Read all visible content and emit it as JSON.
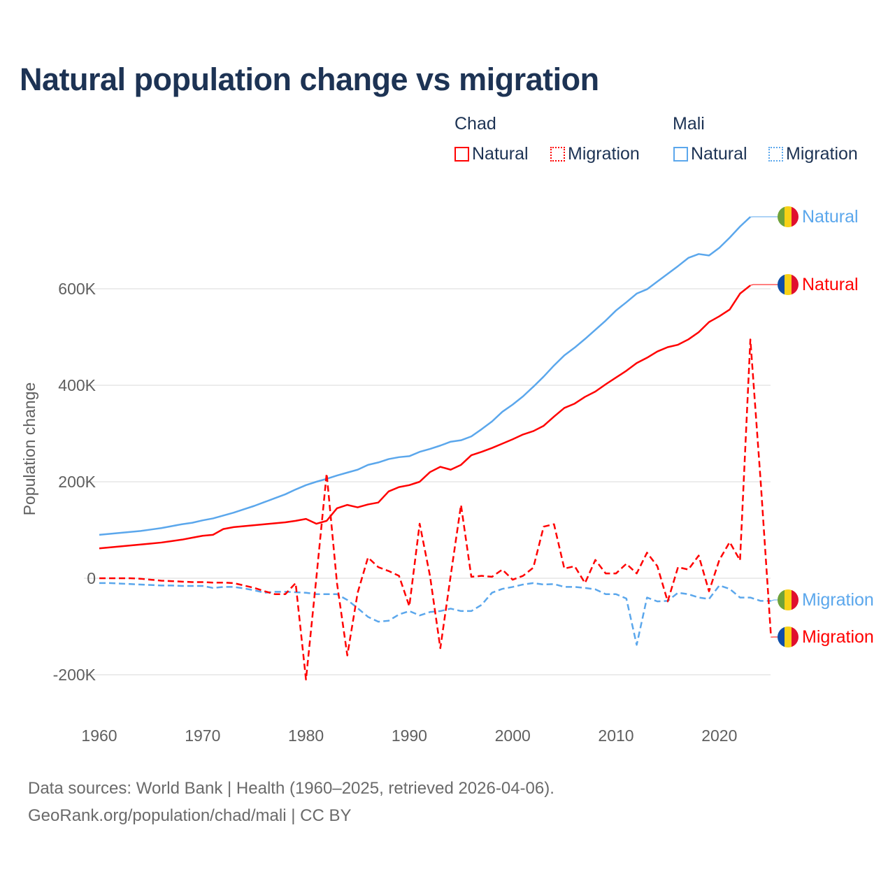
{
  "title": "Natural population change vs migration",
  "legend": {
    "groups": [
      {
        "name": "Chad",
        "items": [
          {
            "label": "Natural",
            "style": "solid"
          },
          {
            "label": "Migration",
            "style": "dotted"
          }
        ],
        "color": "#ff0000"
      },
      {
        "name": "Mali",
        "items": [
          {
            "label": "Natural",
            "style": "solid"
          },
          {
            "label": "Migration",
            "style": "dotted"
          }
        ],
        "color": "#5ba7ec"
      }
    ]
  },
  "source": {
    "line1": "Data sources: World Bank | Health (1960–2025, retrieved 2026-04-06).",
    "line2": "GeoRank.org/population/chad/mali | CC BY"
  },
  "chart_data": {
    "type": "line",
    "title": "Natural population change vs migration",
    "xlabel": "",
    "ylabel": "Population change",
    "xlim": [
      1960,
      2025
    ],
    "ylim": [
      -300000,
      780000
    ],
    "x_ticks": [
      {
        "value": 1960,
        "label": "1960"
      },
      {
        "value": 1970,
        "label": "1970"
      },
      {
        "value": 1980,
        "label": "1980"
      },
      {
        "value": 1990,
        "label": "1990"
      },
      {
        "value": 2000,
        "label": "2000"
      },
      {
        "value": 2010,
        "label": "2010"
      },
      {
        "value": 2020,
        "label": "2020"
      }
    ],
    "y_ticks": [
      {
        "value": -200000,
        "label": "-200K"
      },
      {
        "value": 0,
        "label": "0"
      },
      {
        "value": 200000,
        "label": "200K"
      },
      {
        "value": 400000,
        "label": "400K"
      },
      {
        "value": 600000,
        "label": "600K"
      }
    ],
    "grid": true,
    "legend_position": "top-right",
    "series": [
      {
        "name": "Mali Natural",
        "country": "Mali",
        "end_label": "Natural",
        "color": "#5ba7ec",
        "dashed": false,
        "flag": [
          "#6fa23a",
          "#f7d117",
          "#e0102e"
        ],
        "start_year": 1960,
        "values_k": [
          90,
          92,
          94,
          96,
          98,
          101,
          104,
          108,
          112,
          115,
          120,
          124,
          130,
          136,
          143,
          150,
          158,
          166,
          174,
          184,
          193,
          200,
          206,
          213,
          219,
          225,
          235,
          240,
          247,
          251,
          253,
          262,
          268,
          275,
          283,
          286,
          294,
          309,
          325,
          345,
          360,
          377,
          397,
          418,
          441,
          462,
          478,
          496,
          515,
          534,
          555,
          572,
          590,
          599,
          615,
          631,
          647,
          664,
          672,
          669,
          685,
          706,
          729,
          749
        ]
      },
      {
        "name": "Chad Natural",
        "country": "Chad",
        "end_label": "Natural",
        "color": "#ff0000",
        "dashed": false,
        "flag": [
          "#0f4ea8",
          "#f7d117",
          "#e0102e"
        ],
        "start_year": 1960,
        "values_k": [
          62,
          64,
          66,
          68,
          70,
          72,
          74,
          77,
          80,
          84,
          88,
          90,
          102,
          106,
          108,
          110,
          112,
          114,
          116,
          119,
          123,
          113,
          119,
          145,
          152,
          147,
          153,
          157,
          180,
          189,
          193,
          200,
          220,
          231,
          225,
          235,
          255,
          262,
          270,
          279,
          288,
          298,
          305,
          316,
          335,
          353,
          362,
          376,
          387,
          402,
          416,
          430,
          446,
          457,
          470,
          479,
          484,
          495,
          510,
          531,
          543,
          557,
          590,
          607
        ]
      },
      {
        "name": "Mali Migration",
        "country": "Mali",
        "end_label": "Migration",
        "color": "#5ba7ec",
        "dashed": true,
        "flag": [
          "#6fa23a",
          "#f7d117",
          "#e0102e"
        ],
        "start_year": 1960,
        "values_k": [
          -10,
          -10,
          -11,
          -12,
          -13,
          -14,
          -15,
          -15,
          -16,
          -16,
          -16,
          -20,
          -18,
          -18,
          -21,
          -25,
          -30,
          -28,
          -28,
          -29,
          -30,
          -33,
          -33,
          -33,
          -45,
          -62,
          -80,
          -90,
          -88,
          -75,
          -68,
          -77,
          -70,
          -68,
          -63,
          -68,
          -68,
          -55,
          -30,
          -22,
          -18,
          -13,
          -10,
          -13,
          -12,
          -18,
          -18,
          -20,
          -23,
          -33,
          -33,
          -42,
          -138,
          -40,
          -48,
          -47,
          -30,
          -33,
          -40,
          -43,
          -15,
          -22,
          -40,
          -40,
          -47,
          -47
        ]
      },
      {
        "name": "Chad Migration",
        "country": "Chad",
        "end_label": "Migration",
        "color": "#ff0000",
        "dashed": true,
        "flag": [
          "#0f4ea8",
          "#f7d117",
          "#e0102e"
        ],
        "start_year": 1960,
        "values_k": [
          0,
          0,
          0,
          0,
          -1,
          -3,
          -5,
          -6,
          -7,
          -8,
          -8,
          -9,
          -9,
          -10,
          -15,
          -20,
          -27,
          -33,
          -33,
          -10,
          -210,
          0,
          217,
          -10,
          -160,
          -30,
          43,
          23,
          15,
          5,
          -58,
          113,
          5,
          -145,
          5,
          152,
          3,
          5,
          3,
          18,
          -3,
          5,
          22,
          107,
          112,
          20,
          25,
          -10,
          38,
          10,
          10,
          30,
          10,
          53,
          25,
          -48,
          23,
          18,
          47,
          -27,
          38,
          75,
          37,
          495,
          200,
          -122
        ]
      }
    ]
  }
}
